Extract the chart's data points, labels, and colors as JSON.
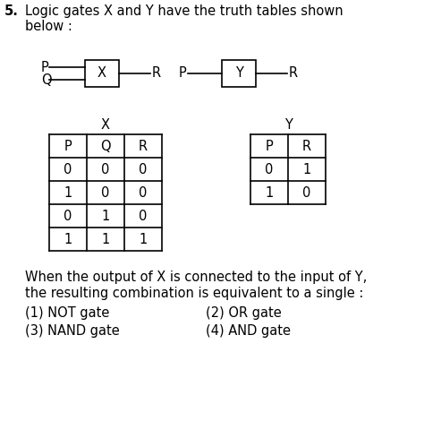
{
  "title_num": "5.",
  "title_text": "Logic gates X and Y have the truth tables shown\nbelow :",
  "table_X_title": "X",
  "table_X_headers": [
    "P",
    "Q",
    "R"
  ],
  "table_X_rows": [
    [
      "0",
      "0",
      "0"
    ],
    [
      "1",
      "0",
      "0"
    ],
    [
      "0",
      "1",
      "0"
    ],
    [
      "1",
      "1",
      "1"
    ]
  ],
  "table_Y_title": "Y",
  "table_Y_headers": [
    "P",
    "R"
  ],
  "table_Y_rows": [
    [
      "0",
      "1"
    ],
    [
      "1",
      "0"
    ]
  ],
  "bottom_text1": "When the output of X is connected to the input of Y,",
  "bottom_text2": "the resulting combination is equivalent to a single :",
  "opt1": "(1) NOT gate",
  "opt2": "(2) OR gate",
  "opt3": "(3) NAND gate",
  "opt4": "(4) AND gate",
  "bg_color": "#ffffff",
  "text_color": "#000000",
  "circuit_X_inputs": [
    "P",
    "Q"
  ],
  "circuit_X_gate": "X",
  "circuit_X_output": "R",
  "circuit_Y_input": "P",
  "circuit_Y_gate": "Y",
  "circuit_Y_output": "R",
  "font_size": 10.5
}
